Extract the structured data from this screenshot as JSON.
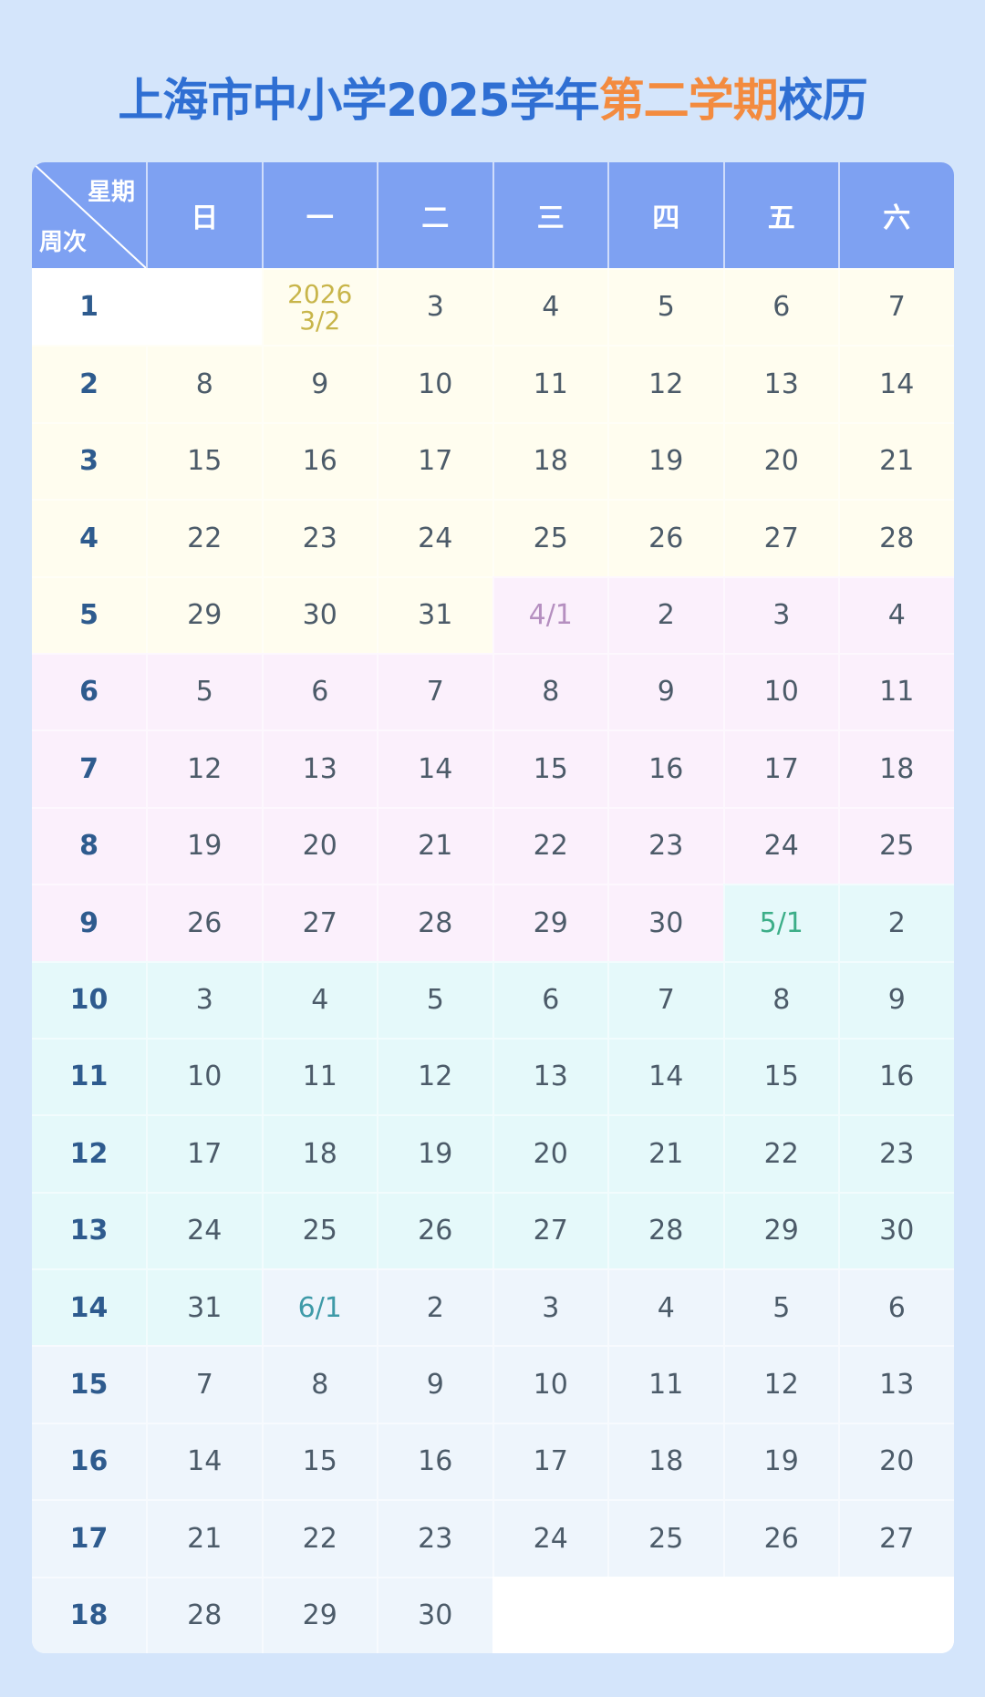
{
  "title": {
    "part1": "上海市中小学2025学年",
    "highlight": "第二学期",
    "part2": "校历"
  },
  "header": {
    "corner_top": "星期",
    "corner_bottom": "周次",
    "days": [
      "日",
      "一",
      "二",
      "三",
      "四",
      "五",
      "六"
    ]
  },
  "colors": {
    "title": "#2f6fd3",
    "highlight": "#f38b3f",
    "header_bg": "#7ea1f2",
    "page_bg": "#d4e5fb",
    "month_bg": [
      "#fffdef",
      "#fbf0fc",
      "#e5f9fa",
      "#eef5fc"
    ],
    "month_start_text": [
      "#c8b54a",
      "#b58fc0",
      "#3cae88",
      "#3e9aa8"
    ],
    "empty_bg": "#ffffff"
  },
  "weeks": [
    {
      "label": "1",
      "days": [
        "",
        "2026\n3/2",
        "3",
        "4",
        "5",
        "6",
        "7"
      ]
    },
    {
      "label": "2",
      "days": [
        "8",
        "9",
        "10",
        "11",
        "12",
        "13",
        "14"
      ]
    },
    {
      "label": "3",
      "days": [
        "15",
        "16",
        "17",
        "18",
        "19",
        "20",
        "21"
      ]
    },
    {
      "label": "4",
      "days": [
        "22",
        "23",
        "24",
        "25",
        "26",
        "27",
        "28"
      ]
    },
    {
      "label": "5",
      "days": [
        "29",
        "30",
        "31",
        "4/1",
        "2",
        "3",
        "4"
      ]
    },
    {
      "label": "6",
      "days": [
        "5",
        "6",
        "7",
        "8",
        "9",
        "10",
        "11"
      ]
    },
    {
      "label": "7",
      "days": [
        "12",
        "13",
        "14",
        "15",
        "16",
        "17",
        "18"
      ]
    },
    {
      "label": "8",
      "days": [
        "19",
        "20",
        "21",
        "22",
        "23",
        "24",
        "25"
      ]
    },
    {
      "label": "9",
      "days": [
        "26",
        "27",
        "28",
        "29",
        "30",
        "5/1",
        "2"
      ]
    },
    {
      "label": "10",
      "days": [
        "3",
        "4",
        "5",
        "6",
        "7",
        "8",
        "9"
      ]
    },
    {
      "label": "11",
      "days": [
        "10",
        "11",
        "12",
        "13",
        "14",
        "15",
        "16"
      ]
    },
    {
      "label": "12",
      "days": [
        "17",
        "18",
        "19",
        "20",
        "21",
        "22",
        "23"
      ]
    },
    {
      "label": "13",
      "days": [
        "24",
        "25",
        "26",
        "27",
        "28",
        "29",
        "30"
      ]
    },
    {
      "label": "14",
      "days": [
        "31",
        "6/1",
        "2",
        "3",
        "4",
        "5",
        "6"
      ]
    },
    {
      "label": "15",
      "days": [
        "7",
        "8",
        "9",
        "10",
        "11",
        "12",
        "13"
      ]
    },
    {
      "label": "16",
      "days": [
        "14",
        "15",
        "16",
        "17",
        "18",
        "19",
        "20"
      ]
    },
    {
      "label": "17",
      "days": [
        "21",
        "22",
        "23",
        "24",
        "25",
        "26",
        "27"
      ]
    },
    {
      "label": "18",
      "days": [
        "28",
        "29",
        "30",
        "",
        "",
        "",
        ""
      ]
    }
  ]
}
